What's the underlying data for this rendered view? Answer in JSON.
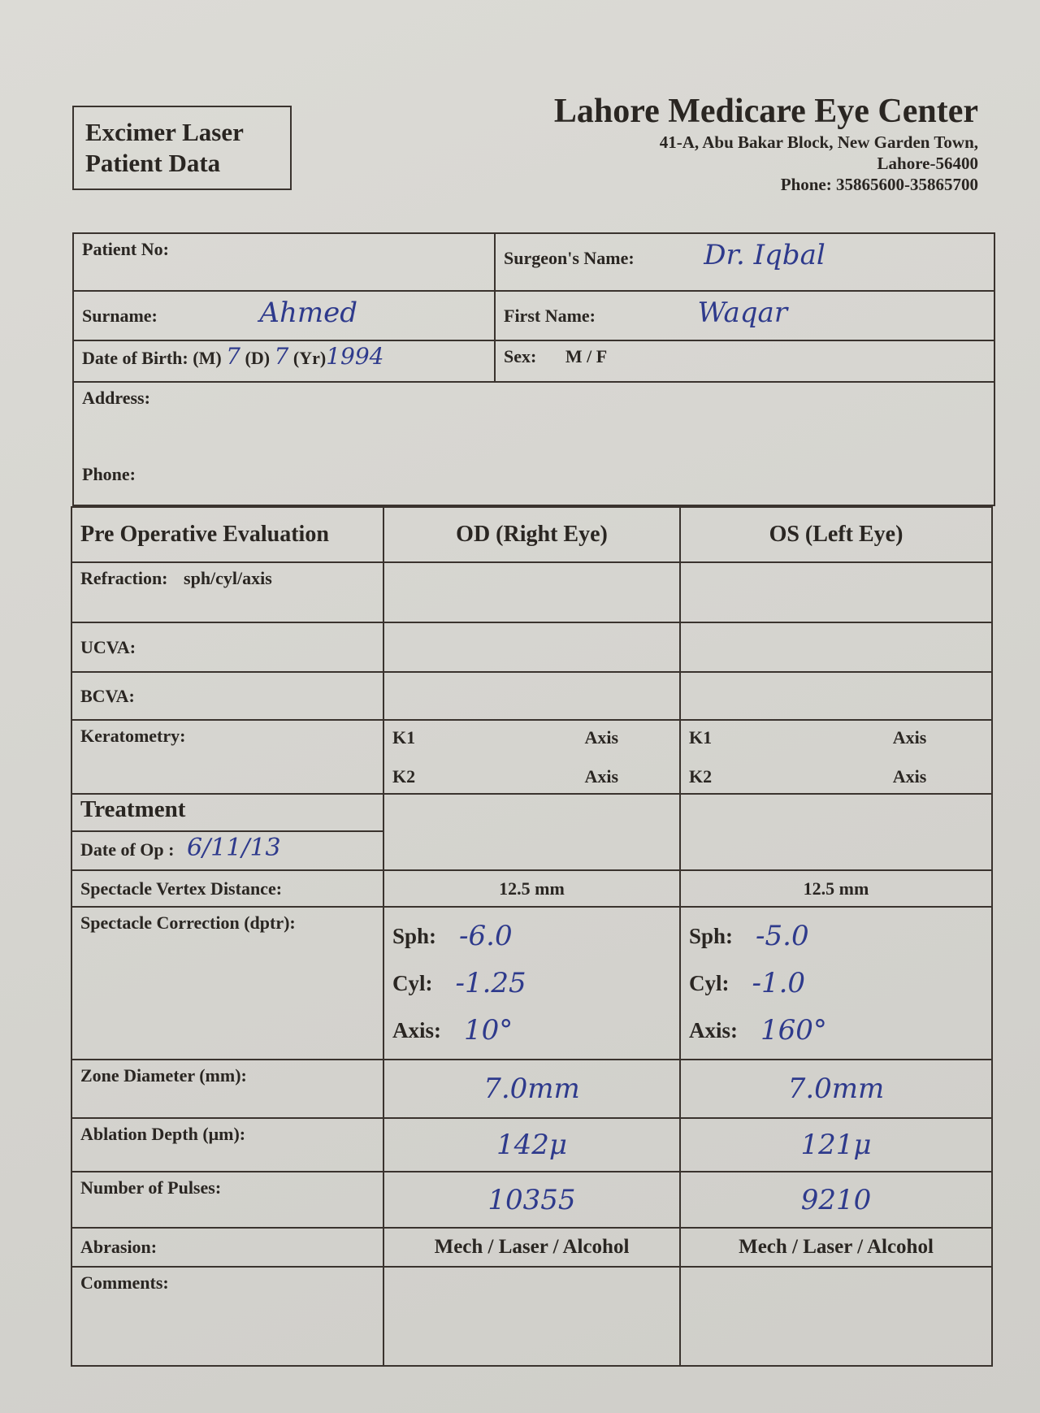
{
  "form_title": [
    "Excimer Laser",
    "Patient Data"
  ],
  "clinic": {
    "name": "Lahore Medicare Eye Center",
    "address1": "41-A, Abu Bakar Block, New Garden Town,",
    "address2": "Lahore-56400",
    "phone": "Phone: 35865600-35865700"
  },
  "patient": {
    "patient_no_label": "Patient No:",
    "patient_no": "",
    "surgeon_label": "Surgeon's Name:",
    "surgeon": "Dr. Iqbal",
    "surname_label": "Surname:",
    "surname": "Ahmed",
    "first_name_label": "First Name:",
    "first_name": "Waqar",
    "dob_label": "Date of Birth: (M)",
    "dob_m": "7",
    "dob_d_label": "(D)",
    "dob_d": "7",
    "dob_yr_label": "(Yr)",
    "dob_yr": "1994",
    "sex_label": "Sex:",
    "sex_options": "M / F",
    "sex_value": "M",
    "address_label": "Address:",
    "phone_label": "Phone:"
  },
  "evaluation": {
    "header": "Pre Operative Evaluation",
    "od": "OD (Right Eye)",
    "os": "OS (Left Eye)",
    "refraction_label": "Refraction:",
    "refraction_sub": "sph/cyl/axis",
    "ucva_label": "UCVA:",
    "bcva_label": "BCVA:",
    "keratometry_label": "Keratometry:",
    "k1": "K1",
    "k2": "K2",
    "axis": "Axis",
    "treatment_label": "Treatment",
    "date_op_label": "Date of Op :",
    "date_op": "6/11/13",
    "vertex_label": "Spectacle Vertex Distance:",
    "vertex_od": "12.5 mm",
    "vertex_os": "12.5 mm",
    "correction_label": "Spectacle Correction (dptr):",
    "sph_label": "Sph:",
    "cyl_label": "Cyl:",
    "axis_label": "Axis:",
    "od_sph": "-6.0",
    "od_cyl": "-1.25",
    "od_axis": "10°",
    "os_sph": "-5.0",
    "os_cyl": "-1.0",
    "os_axis": "160°",
    "zone_label": "Zone Diameter (mm):",
    "zone_od": "7.0mm",
    "zone_os": "7.0mm",
    "ablation_label": "Ablation Depth (μm):",
    "ablation_od": "142μ",
    "ablation_os": "121μ",
    "pulses_label": "Number of Pulses:",
    "pulses_od": "10355",
    "pulses_os": "9210",
    "abrasion_label": "Abrasion:",
    "abrasion_od": "Mech / Laser / Alcohol",
    "abrasion_os": "Mech / Laser / Alcohol",
    "comments_label": "Comments:"
  }
}
